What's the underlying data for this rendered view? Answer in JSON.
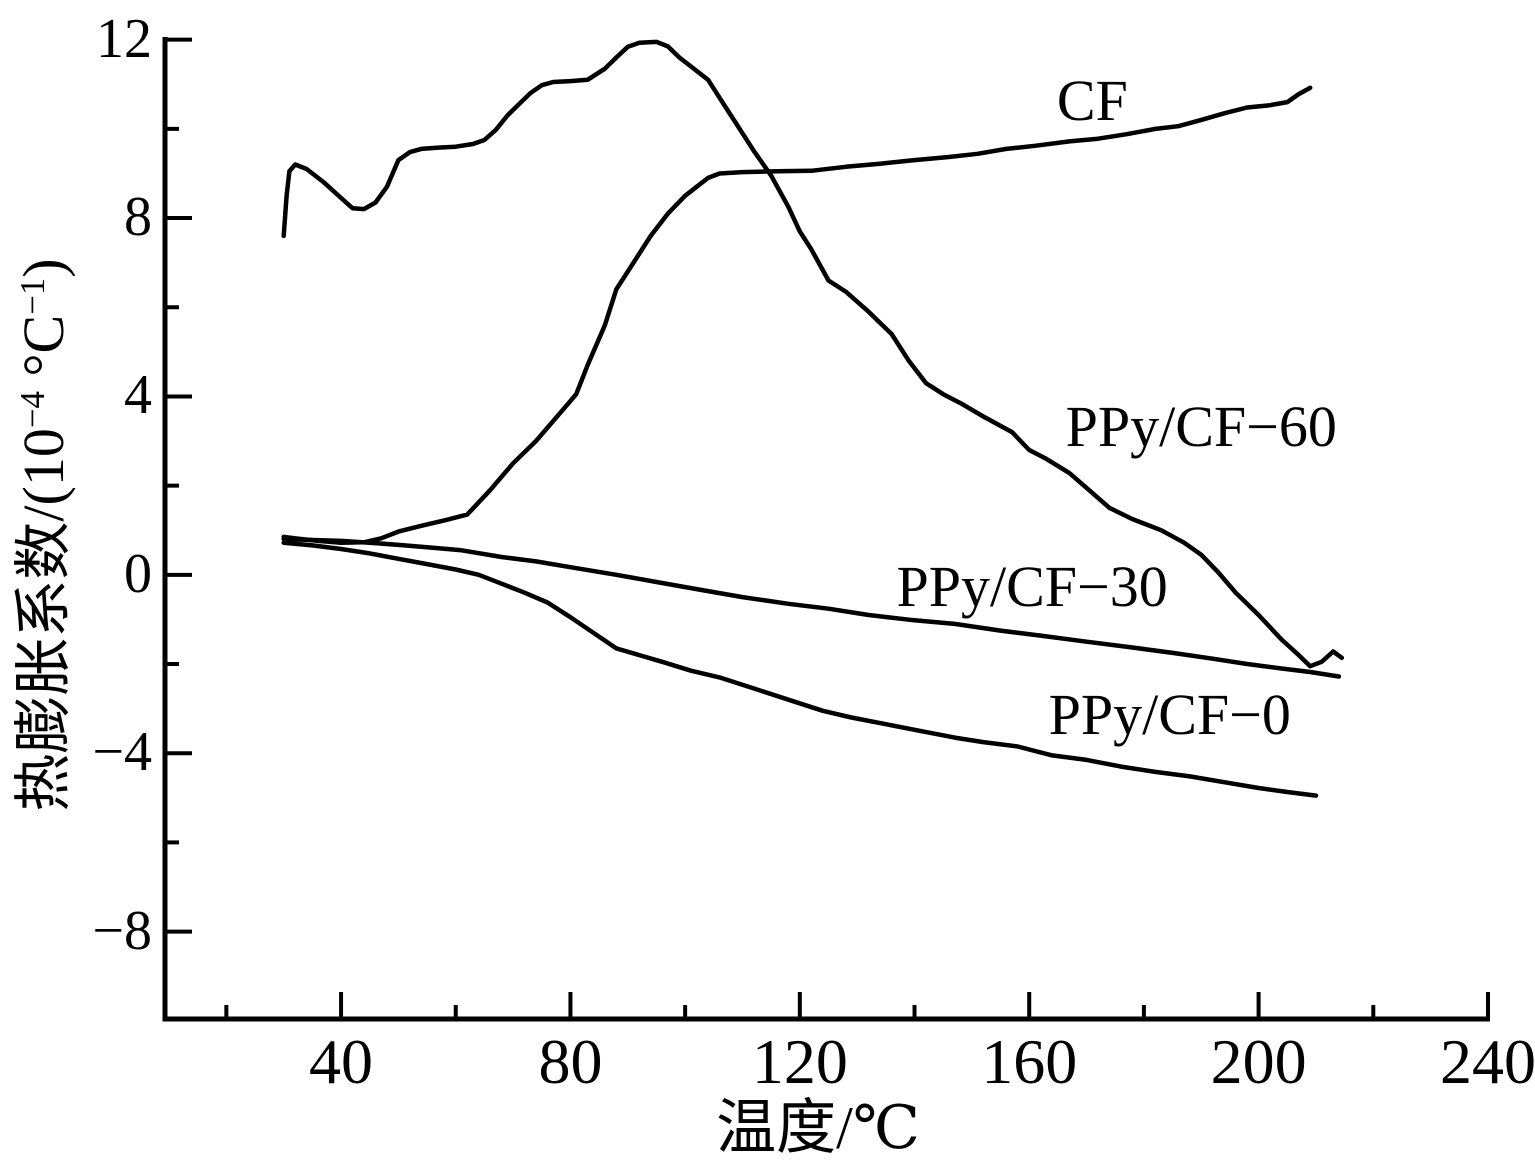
{
  "figure": {
    "background": "#ffffff",
    "line_color": "#000000"
  },
  "chart_data": {
    "type": "line",
    "title": "",
    "xlabel": "温度/℃",
    "ylabel_parts": {
      "prefix": "热膨胀系数/(10",
      "sup1": "−4",
      "mid": " °C",
      "sup2": "−1",
      "suffix": ")"
    },
    "grid": false,
    "legend_position": "inline-labels-next-to-curves",
    "axes": {
      "x": {
        "range": [
          9.3,
          240.35
        ],
        "major_ticks": [
          40,
          80,
          120,
          160,
          200,
          240
        ],
        "minor_ticks": [
          20,
          60,
          100,
          140,
          180,
          220
        ]
      },
      "y": {
        "range": [
          -9.96,
          12.06
        ],
        "major_ticks": [
          -8,
          -4,
          0,
          4,
          8,
          12
        ],
        "minor_ticks": [
          -6,
          -2,
          2,
          6,
          10
        ]
      }
    },
    "series": [
      {
        "name": "CF",
        "label": "CF",
        "label_pos": {
          "x": 171,
          "y": 10.55
        },
        "points": [
          [
            30,
            0.85
          ],
          [
            32,
            0.82
          ],
          [
            36,
            0.76
          ],
          [
            40,
            0.72
          ],
          [
            44,
            0.73
          ],
          [
            47,
            0.82
          ],
          [
            50,
            0.97
          ],
          [
            54,
            1.1
          ],
          [
            58,
            1.22
          ],
          [
            62,
            1.35
          ],
          [
            66,
            1.9
          ],
          [
            70,
            2.5
          ],
          [
            74,
            3.0
          ],
          [
            78,
            3.6
          ],
          [
            81,
            4.05
          ],
          [
            83,
            4.7
          ],
          [
            86,
            5.6
          ],
          [
            88,
            6.4
          ],
          [
            91,
            7.0
          ],
          [
            94,
            7.6
          ],
          [
            97,
            8.1
          ],
          [
            100,
            8.5
          ],
          [
            102,
            8.7
          ],
          [
            104,
            8.9
          ],
          [
            106,
            9.0
          ],
          [
            110,
            9.03
          ],
          [
            116,
            9.05
          ],
          [
            122,
            9.06
          ],
          [
            128,
            9.15
          ],
          [
            134,
            9.22
          ],
          [
            140,
            9.3
          ],
          [
            146,
            9.37
          ],
          [
            151,
            9.44
          ],
          [
            156,
            9.55
          ],
          [
            161,
            9.62
          ],
          [
            167,
            9.72
          ],
          [
            172,
            9.78
          ],
          [
            177,
            9.88
          ],
          [
            182,
            10.0
          ],
          [
            186,
            10.06
          ],
          [
            190,
            10.2
          ],
          [
            194,
            10.35
          ],
          [
            198,
            10.48
          ],
          [
            202,
            10.53
          ],
          [
            205,
            10.6
          ],
          [
            207,
            10.78
          ],
          [
            209,
            10.92
          ]
        ]
      },
      {
        "name": "PPy/CF-60",
        "label": "PPy/CF−60",
        "label_pos": {
          "x": 190,
          "y": 3.25
        },
        "points": [
          [
            30,
            7.6
          ],
          [
            30.5,
            8.5
          ],
          [
            31,
            9.05
          ],
          [
            32,
            9.2
          ],
          [
            34,
            9.1
          ],
          [
            37,
            8.8
          ],
          [
            40,
            8.45
          ],
          [
            42,
            8.22
          ],
          [
            44,
            8.2
          ],
          [
            46,
            8.35
          ],
          [
            48,
            8.7
          ],
          [
            50,
            9.3
          ],
          [
            52,
            9.48
          ],
          [
            54,
            9.55
          ],
          [
            57,
            9.58
          ],
          [
            60,
            9.6
          ],
          [
            63,
            9.66
          ],
          [
            65,
            9.75
          ],
          [
            67,
            9.98
          ],
          [
            69,
            10.3
          ],
          [
            71,
            10.55
          ],
          [
            73,
            10.8
          ],
          [
            75,
            10.98
          ],
          [
            77,
            11.05
          ],
          [
            80,
            11.07
          ],
          [
            83,
            11.1
          ],
          [
            86,
            11.35
          ],
          [
            88,
            11.6
          ],
          [
            90,
            11.84
          ],
          [
            92,
            11.93
          ],
          [
            95,
            11.95
          ],
          [
            97,
            11.85
          ],
          [
            99,
            11.6
          ],
          [
            102,
            11.3
          ],
          [
            104,
            11.1
          ],
          [
            106,
            10.7
          ],
          [
            108,
            10.3
          ],
          [
            110,
            9.9
          ],
          [
            112,
            9.5
          ],
          [
            115,
            8.95
          ],
          [
            118,
            8.25
          ],
          [
            120,
            7.7
          ],
          [
            122,
            7.3
          ],
          [
            125,
            6.6
          ],
          [
            128,
            6.35
          ],
          [
            132,
            5.9
          ],
          [
            136,
            5.4
          ],
          [
            139,
            4.8
          ],
          [
            142,
            4.3
          ],
          [
            145,
            4.05
          ],
          [
            148,
            3.85
          ],
          [
            152,
            3.55
          ],
          [
            157,
            3.2
          ],
          [
            160,
            2.8
          ],
          [
            163,
            2.6
          ],
          [
            167,
            2.28
          ],
          [
            170,
            1.95
          ],
          [
            174,
            1.5
          ],
          [
            178,
            1.25
          ],
          [
            183,
            1.0
          ],
          [
            187,
            0.72
          ],
          [
            190,
            0.45
          ],
          [
            193,
            0.05
          ],
          [
            196,
            -0.4
          ],
          [
            200,
            -0.9
          ],
          [
            204,
            -1.45
          ],
          [
            207,
            -1.8
          ],
          [
            209,
            -2.05
          ],
          [
            211,
            -1.95
          ],
          [
            213,
            -1.72
          ],
          [
            214.5,
            -1.86
          ]
        ]
      },
      {
        "name": "PPy/CF-30",
        "label": "PPy/CF−30",
        "label_pos": {
          "x": 160.5,
          "y": -0.34
        },
        "points": [
          [
            30,
            0.8
          ],
          [
            35,
            0.78
          ],
          [
            40,
            0.76
          ],
          [
            45,
            0.72
          ],
          [
            50,
            0.67
          ],
          [
            55,
            0.62
          ],
          [
            61,
            0.55
          ],
          [
            68,
            0.4
          ],
          [
            74,
            0.3
          ],
          [
            80,
            0.17
          ],
          [
            88,
            0.0
          ],
          [
            95,
            -0.16
          ],
          [
            102,
            -0.32
          ],
          [
            110,
            -0.5
          ],
          [
            118,
            -0.65
          ],
          [
            125,
            -0.76
          ],
          [
            132,
            -0.9
          ],
          [
            140,
            -1.02
          ],
          [
            147,
            -1.1
          ],
          [
            155,
            -1.25
          ],
          [
            163,
            -1.38
          ],
          [
            170,
            -1.5
          ],
          [
            178,
            -1.63
          ],
          [
            185,
            -1.75
          ],
          [
            192,
            -1.88
          ],
          [
            198,
            -2.0
          ],
          [
            204,
            -2.1
          ],
          [
            209,
            -2.18
          ],
          [
            214,
            -2.28
          ]
        ]
      },
      {
        "name": "PPy/CF-0",
        "label": "PPy/CF−0",
        "label_pos": {
          "x": 184.5,
          "y": -3.2
        },
        "points": [
          [
            30,
            0.72
          ],
          [
            35,
            0.66
          ],
          [
            40,
            0.58
          ],
          [
            45,
            0.48
          ],
          [
            50,
            0.36
          ],
          [
            55,
            0.24
          ],
          [
            60,
            0.12
          ],
          [
            64,
            0.0
          ],
          [
            68,
            -0.2
          ],
          [
            72,
            -0.4
          ],
          [
            76,
            -0.62
          ],
          [
            80,
            -0.95
          ],
          [
            84,
            -1.3
          ],
          [
            88,
            -1.65
          ],
          [
            92,
            -1.8
          ],
          [
            96,
            -1.95
          ],
          [
            101,
            -2.15
          ],
          [
            106,
            -2.3
          ],
          [
            112,
            -2.55
          ],
          [
            118,
            -2.8
          ],
          [
            124,
            -3.05
          ],
          [
            129,
            -3.2
          ],
          [
            135,
            -3.35
          ],
          [
            141,
            -3.5
          ],
          [
            147,
            -3.65
          ],
          [
            152,
            -3.75
          ],
          [
            158,
            -3.85
          ],
          [
            164,
            -4.05
          ],
          [
            170,
            -4.15
          ],
          [
            176,
            -4.3
          ],
          [
            182,
            -4.42
          ],
          [
            188,
            -4.52
          ],
          [
            194,
            -4.65
          ],
          [
            200,
            -4.78
          ],
          [
            205,
            -4.87
          ],
          [
            210,
            -4.95
          ]
        ]
      }
    ]
  }
}
